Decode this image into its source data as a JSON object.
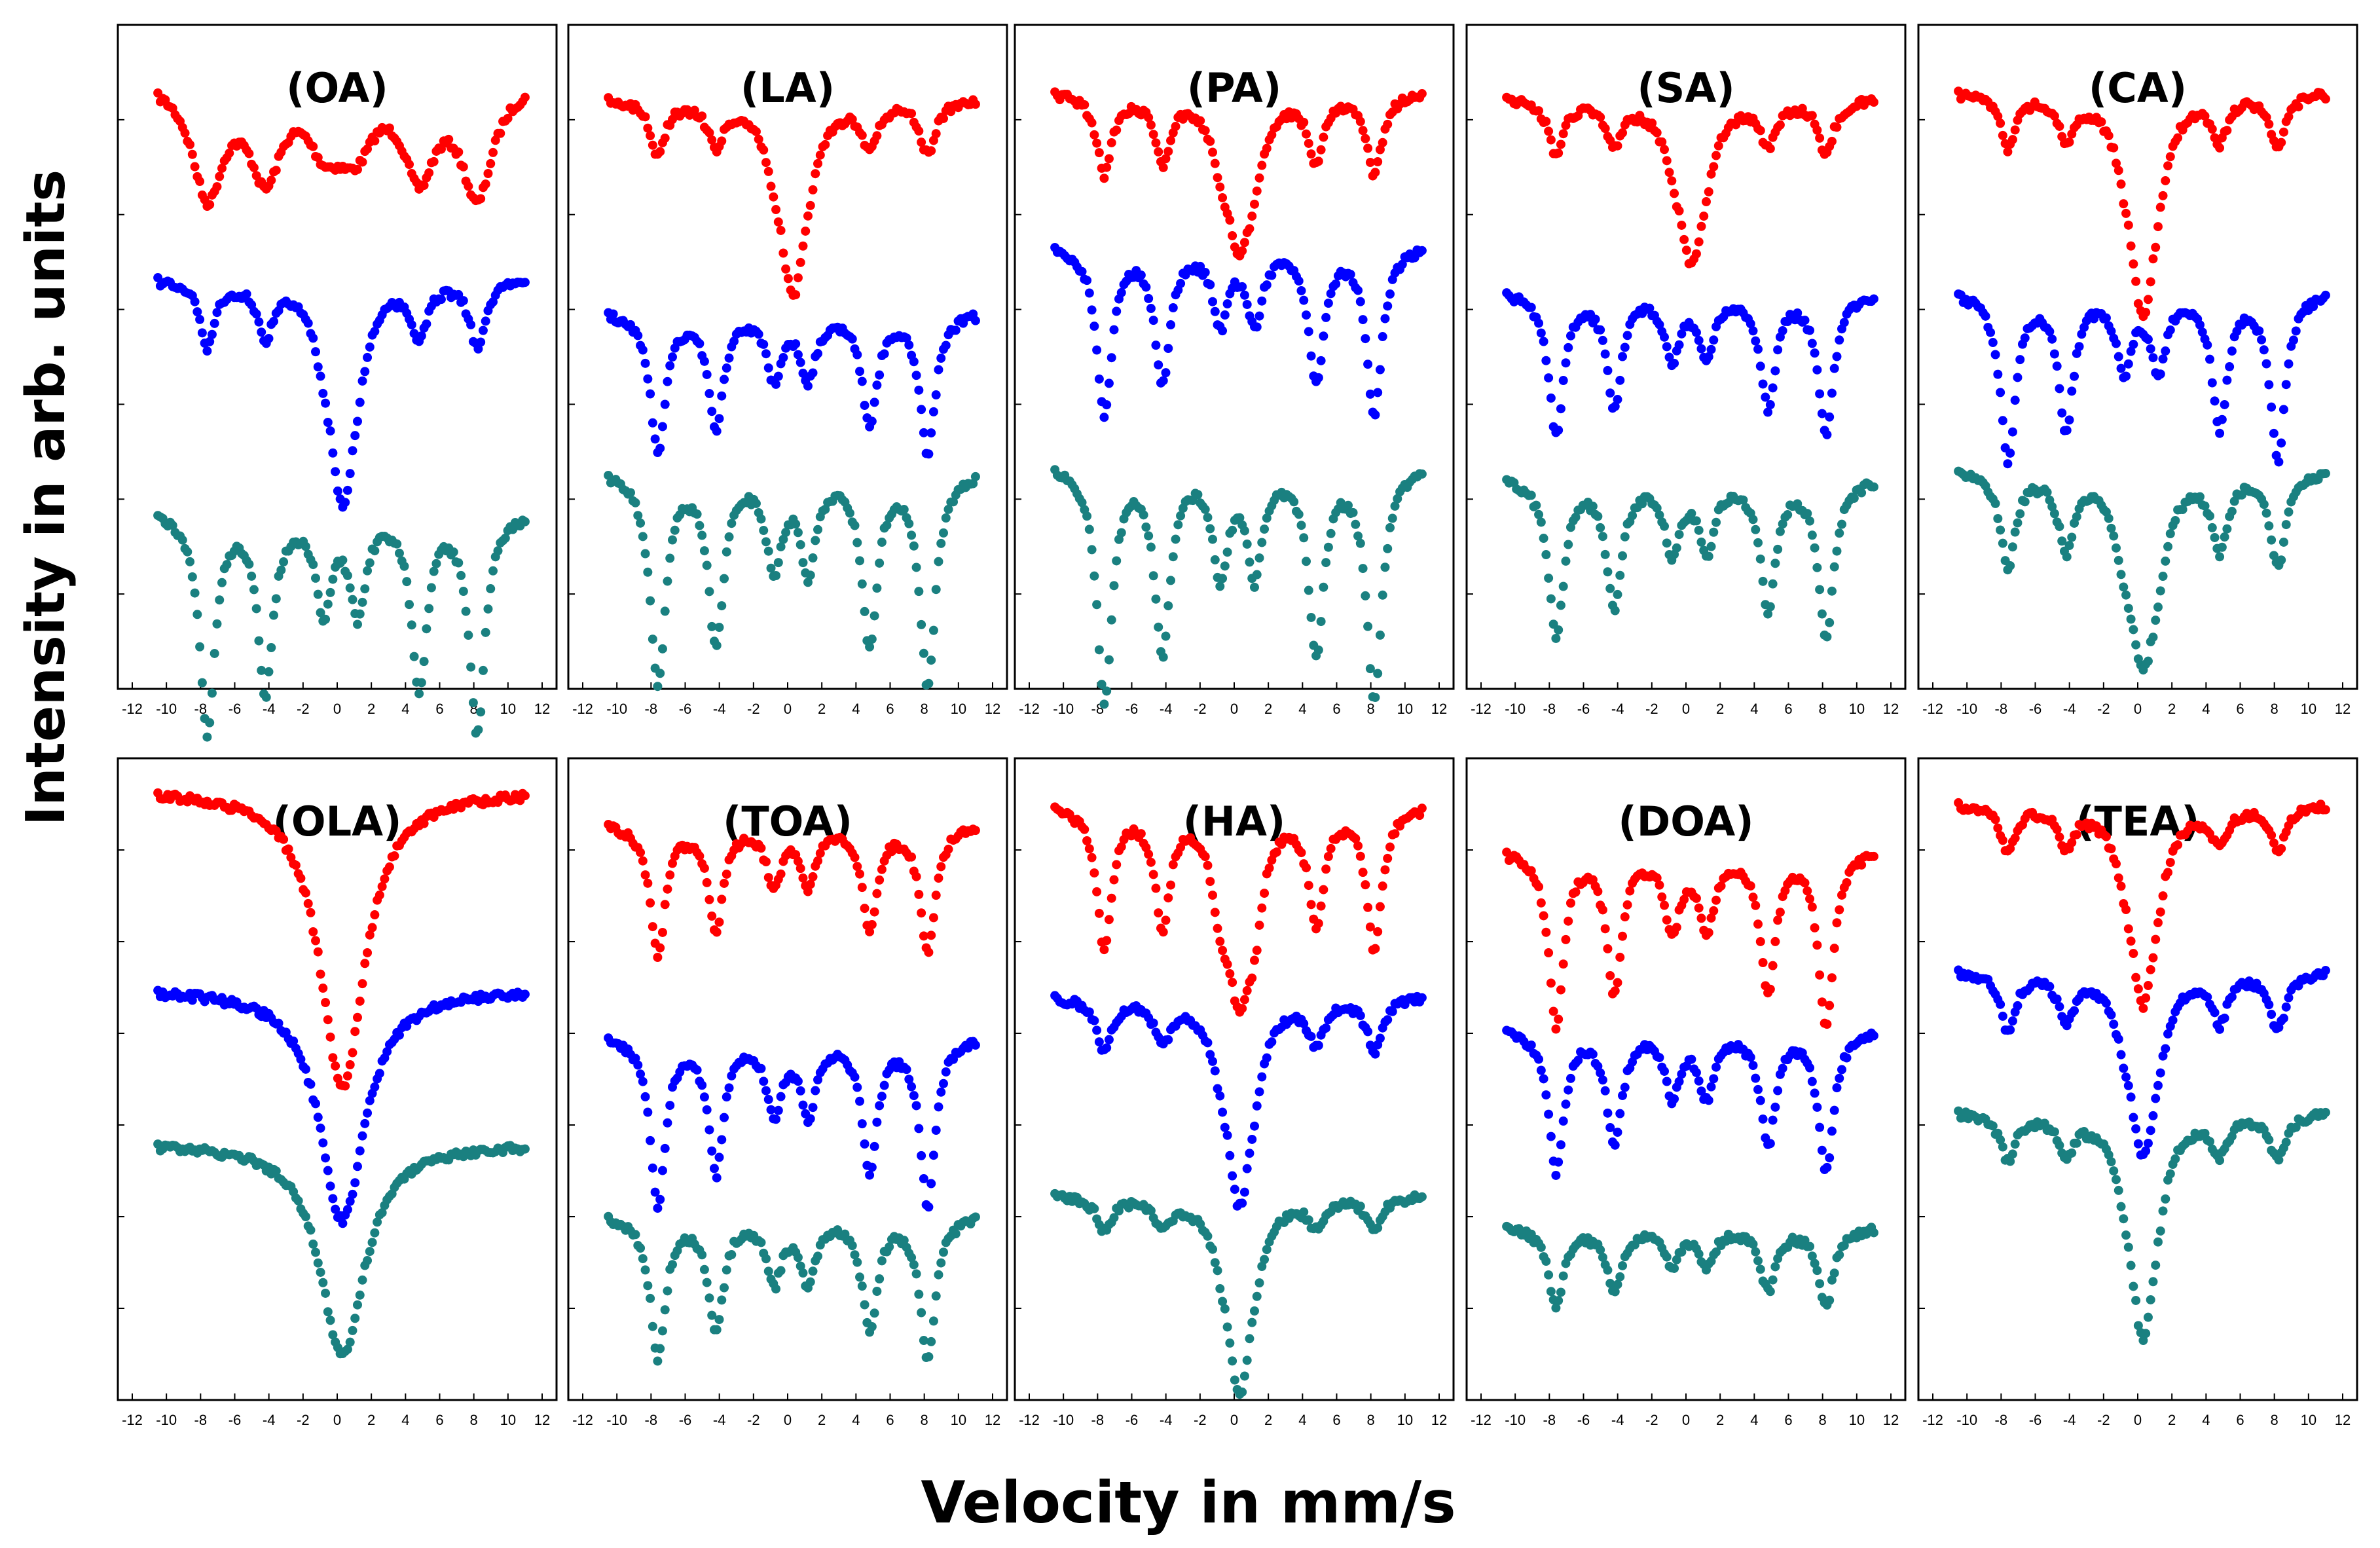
{
  "figure": {
    "ylabel": "Intensity in arb. units",
    "xlabel": "Velocity in mm/s",
    "colors": {
      "top": "#ff0000",
      "middle": "#0000ff",
      "bottom": "#1a8080",
      "frame": "#000000"
    }
  },
  "chart_data": [
    {
      "type": "scatter",
      "title": "(OA)",
      "xlim": [
        -12,
        12
      ],
      "x_ticks": [
        -12,
        -10,
        -8,
        -6,
        -4,
        -2,
        0,
        2,
        4,
        6,
        8,
        10,
        12
      ],
      "series": [
        {
          "color": "#ff0000",
          "baseline": 0.08,
          "kind": "broad_sextet",
          "depth": 0.17,
          "center_depth": 0.03
        },
        {
          "color": "#0000ff",
          "baseline": 0.38,
          "kind": "mixed",
          "depth": 0.1,
          "center_depth": 0.32
        },
        {
          "color": "#1a8080",
          "baseline": 0.73,
          "kind": "sextet",
          "depth": 0.33,
          "center_depth": 0.0
        }
      ]
    },
    {
      "type": "scatter",
      "title": "(LA)",
      "xlim": [
        -12,
        12
      ],
      "x_ticks": [
        -12,
        -10,
        -8,
        -6,
        -4,
        -2,
        0,
        2,
        4,
        6,
        8,
        10,
        12
      ],
      "series": [
        {
          "color": "#ff0000",
          "baseline": 0.11,
          "kind": "mixed",
          "depth": 0.08,
          "center_depth": 0.28
        },
        {
          "color": "#0000ff",
          "baseline": 0.43,
          "kind": "sextet",
          "depth": 0.21,
          "center_depth": 0.0
        },
        {
          "color": "#1a8080",
          "baseline": 0.67,
          "kind": "sextet",
          "depth": 0.32,
          "center_depth": 0.0
        }
      ]
    },
    {
      "type": "scatter",
      "title": "(PA)",
      "xlim": [
        -12,
        12
      ],
      "x_ticks": [
        -12,
        -10,
        -8,
        -6,
        -4,
        -2,
        0,
        2,
        4,
        6,
        8,
        10,
        12
      ],
      "series": [
        {
          "color": "#ff0000",
          "baseline": 0.1,
          "kind": "mixed",
          "depth": 0.12,
          "center_depth": 0.22
        },
        {
          "color": "#0000ff",
          "baseline": 0.33,
          "kind": "sextet",
          "depth": 0.25,
          "center_depth": 0.0
        },
        {
          "color": "#1a8080",
          "baseline": 0.66,
          "kind": "sextet",
          "depth": 0.35,
          "center_depth": 0.0
        }
      ]
    },
    {
      "type": "scatter",
      "title": "(SA)",
      "xlim": [
        -12,
        12
      ],
      "x_ticks": [
        -12,
        -10,
        -8,
        -6,
        -4,
        -2,
        0,
        2,
        4,
        6,
        8,
        10,
        12
      ],
      "series": [
        {
          "color": "#ff0000",
          "baseline": 0.11,
          "kind": "mixed",
          "depth": 0.08,
          "center_depth": 0.23
        },
        {
          "color": "#0000ff",
          "baseline": 0.4,
          "kind": "sextet",
          "depth": 0.21,
          "center_depth": 0.0
        },
        {
          "color": "#1a8080",
          "baseline": 0.68,
          "kind": "sextet",
          "depth": 0.24,
          "center_depth": 0.0
        }
      ]
    },
    {
      "type": "scatter",
      "title": "(CA)",
      "xlim": [
        -12,
        12
      ],
      "x_ticks": [
        -12,
        -10,
        -8,
        -6,
        -4,
        -2,
        0,
        2,
        4,
        6,
        8,
        10,
        12
      ],
      "series": [
        {
          "color": "#ff0000",
          "baseline": 0.1,
          "kind": "mixed",
          "depth": 0.08,
          "center_depth": 0.32
        },
        {
          "color": "#0000ff",
          "baseline": 0.4,
          "kind": "sextet",
          "depth": 0.25,
          "center_depth": 0.0
        },
        {
          "color": "#1a8080",
          "baseline": 0.67,
          "kind": "mixed",
          "depth": 0.14,
          "center_depth": 0.27
        }
      ]
    },
    {
      "type": "scatter",
      "title": "(OLA)",
      "xlim": [
        -12,
        12
      ],
      "x_ticks": [
        -12,
        -10,
        -8,
        -6,
        -4,
        -2,
        0,
        2,
        4,
        6,
        8,
        10,
        12
      ],
      "series": [
        {
          "color": "#ff0000",
          "baseline": 0.05,
          "kind": "singlet",
          "depth": 0.02,
          "center_depth": 0.46
        },
        {
          "color": "#0000ff",
          "baseline": 0.36,
          "kind": "singlet",
          "depth": 0.01,
          "center_depth": 0.36
        },
        {
          "color": "#1a8080",
          "baseline": 0.6,
          "kind": "singlet",
          "depth": 0.02,
          "center_depth": 0.33
        }
      ]
    },
    {
      "type": "scatter",
      "title": "(TOA)",
      "xlim": [
        -12,
        12
      ],
      "x_ticks": [
        -12,
        -10,
        -8,
        -6,
        -4,
        -2,
        0,
        2,
        4,
        6,
        8,
        10,
        12
      ],
      "series": [
        {
          "color": "#ff0000",
          "baseline": 0.1,
          "kind": "sextet",
          "depth": 0.2,
          "center_depth": 0.0
        },
        {
          "color": "#0000ff",
          "baseline": 0.43,
          "kind": "sextet",
          "depth": 0.26,
          "center_depth": 0.0
        },
        {
          "color": "#1a8080",
          "baseline": 0.71,
          "kind": "sextet",
          "depth": 0.22,
          "center_depth": 0.0
        }
      ]
    },
    {
      "type": "scatter",
      "title": "(HA)",
      "xlim": [
        -12,
        12
      ],
      "x_ticks": [
        -12,
        -10,
        -8,
        -6,
        -4,
        -2,
        0,
        2,
        4,
        6,
        8,
        10,
        12
      ],
      "series": [
        {
          "color": "#ff0000",
          "baseline": 0.07,
          "kind": "mixed",
          "depth": 0.22,
          "center_depth": 0.27
        },
        {
          "color": "#0000ff",
          "baseline": 0.37,
          "kind": "mixed",
          "depth": 0.08,
          "center_depth": 0.31
        },
        {
          "color": "#1a8080",
          "baseline": 0.68,
          "kind": "mixed",
          "depth": 0.05,
          "center_depth": 0.3
        }
      ]
    },
    {
      "type": "scatter",
      "title": "(DOA)",
      "xlim": [
        -12,
        12
      ],
      "x_ticks": [
        -12,
        -10,
        -8,
        -6,
        -4,
        -2,
        0,
        2,
        4,
        6,
        8,
        10,
        12
      ],
      "series": [
        {
          "color": "#ff0000",
          "baseline": 0.14,
          "kind": "sextet",
          "depth": 0.27,
          "center_depth": 0.0
        },
        {
          "color": "#0000ff",
          "baseline": 0.42,
          "kind": "sextet",
          "depth": 0.22,
          "center_depth": 0.0
        },
        {
          "color": "#1a8080",
          "baseline": 0.73,
          "kind": "sextet",
          "depth": 0.12,
          "center_depth": 0.0
        }
      ]
    },
    {
      "type": "scatter",
      "title": "(TEA)",
      "xlim": [
        -12,
        12
      ],
      "x_ticks": [
        -12,
        -10,
        -8,
        -6,
        -4,
        -2,
        0,
        2,
        4,
        6,
        8,
        10,
        12
      ],
      "series": [
        {
          "color": "#ff0000",
          "baseline": 0.07,
          "kind": "mixed",
          "depth": 0.07,
          "center_depth": 0.3
        },
        {
          "color": "#0000ff",
          "baseline": 0.33,
          "kind": "mixed",
          "depth": 0.09,
          "center_depth": 0.27
        },
        {
          "color": "#1a8080",
          "baseline": 0.55,
          "kind": "mixed",
          "depth": 0.07,
          "center_depth": 0.34
        }
      ]
    }
  ]
}
